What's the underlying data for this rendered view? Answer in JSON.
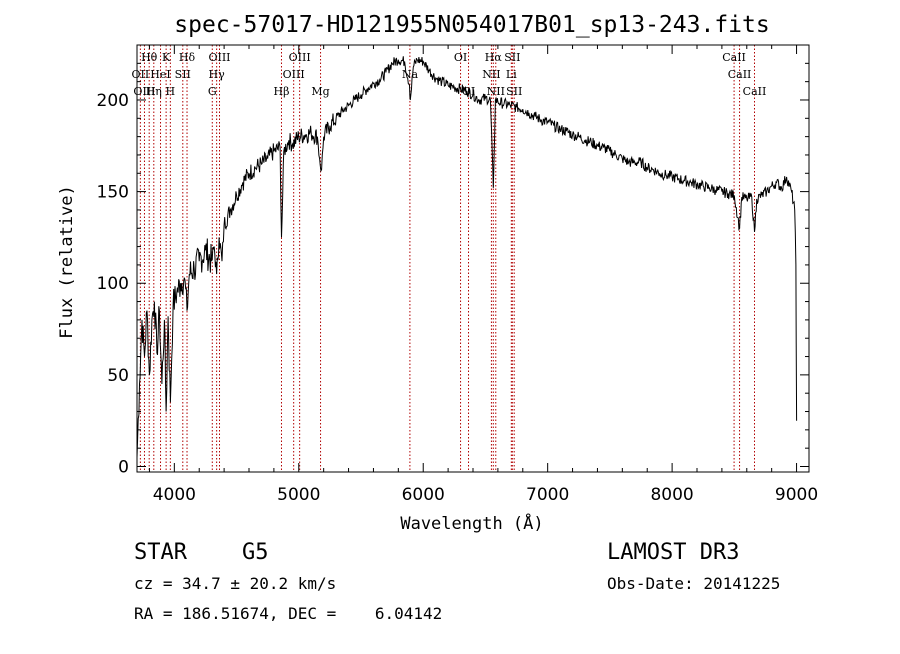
{
  "chart_data": {
    "type": "line",
    "title": "spec-57017-HD121955N054017B01_sp13-243.fits",
    "xlabel": "Wavelength (Å)",
    "ylabel": "Flux (relative)",
    "xlim": [
      3700,
      9100
    ],
    "ylim": [
      -3,
      230
    ],
    "x_ticks": [
      4000,
      5000,
      6000,
      7000,
      8000,
      9000
    ],
    "y_ticks": [
      0,
      50,
      100,
      150,
      200
    ],
    "grid": false,
    "series": [
      {
        "points": [
          [
            3700,
            5
          ],
          [
            3720,
            45
          ],
          [
            3740,
            80
          ],
          [
            3760,
            60
          ],
          [
            3780,
            85
          ],
          [
            3800,
            50
          ],
          [
            3820,
            80
          ],
          [
            3840,
            90
          ],
          [
            3860,
            62
          ],
          [
            3880,
            85
          ],
          [
            3900,
            45
          ],
          [
            3920,
            80
          ],
          [
            3934,
            30
          ],
          [
            3950,
            82
          ],
          [
            3968,
            35
          ],
          [
            3990,
            88
          ],
          [
            4020,
            95
          ],
          [
            4050,
            100
          ],
          [
            4080,
            103
          ],
          [
            4102,
            85
          ],
          [
            4120,
            105
          ],
          [
            4160,
            108
          ],
          [
            4200,
            112
          ],
          [
            4250,
            118
          ],
          [
            4300,
            112
          ],
          [
            4320,
            120
          ],
          [
            4340,
            105
          ],
          [
            4360,
            125
          ],
          [
            4383,
            112
          ],
          [
            4400,
            132
          ],
          [
            4450,
            140
          ],
          [
            4500,
            148
          ],
          [
            4550,
            155
          ],
          [
            4600,
            160
          ],
          [
            4650,
            163
          ],
          [
            4700,
            165
          ],
          [
            4750,
            168
          ],
          [
            4800,
            172
          ],
          [
            4850,
            174
          ],
          [
            4861,
            125
          ],
          [
            4880,
            172
          ],
          [
            4920,
            178
          ],
          [
            4950,
            176
          ],
          [
            5000,
            180
          ],
          [
            5050,
            181
          ],
          [
            5100,
            182
          ],
          [
            5150,
            180
          ],
          [
            5167,
            168
          ],
          [
            5183,
            162
          ],
          [
            5200,
            180
          ],
          [
            5250,
            186
          ],
          [
            5300,
            190
          ],
          [
            5350,
            194
          ],
          [
            5400,
            197
          ],
          [
            5450,
            200
          ],
          [
            5500,
            203
          ],
          [
            5550,
            206
          ],
          [
            5600,
            209
          ],
          [
            5650,
            211
          ],
          [
            5700,
            215
          ],
          [
            5750,
            220
          ],
          [
            5800,
            222
          ],
          [
            5850,
            221
          ],
          [
            5890,
            208
          ],
          [
            5896,
            200
          ],
          [
            5920,
            218
          ],
          [
            5950,
            222
          ],
          [
            6000,
            221
          ],
          [
            6050,
            216
          ],
          [
            6100,
            212
          ],
          [
            6150,
            210
          ],
          [
            6200,
            208
          ],
          [
            6250,
            207
          ],
          [
            6300,
            206
          ],
          [
            6350,
            205
          ],
          [
            6400,
            203
          ],
          [
            6450,
            200
          ],
          [
            6500,
            201
          ],
          [
            6540,
            200
          ],
          [
            6563,
            152
          ],
          [
            6580,
            200
          ],
          [
            6600,
            199
          ],
          [
            6650,
            198
          ],
          [
            6700,
            197
          ],
          [
            6750,
            196
          ],
          [
            6800,
            195
          ],
          [
            6850,
            193
          ],
          [
            6900,
            191
          ],
          [
            6950,
            189
          ],
          [
            7000,
            188
          ],
          [
            7050,
            186
          ],
          [
            7100,
            184
          ],
          [
            7150,
            183
          ],
          [
            7200,
            181
          ],
          [
            7250,
            180
          ],
          [
            7300,
            178
          ],
          [
            7350,
            177
          ],
          [
            7400,
            175
          ],
          [
            7450,
            174
          ],
          [
            7500,
            172
          ],
          [
            7550,
            170
          ],
          [
            7600,
            168
          ],
          [
            7650,
            166
          ],
          [
            7700,
            166
          ],
          [
            7750,
            166
          ],
          [
            7800,
            163
          ],
          [
            7850,
            162
          ],
          [
            7900,
            160
          ],
          [
            7950,
            159
          ],
          [
            8000,
            158
          ],
          [
            8050,
            157
          ],
          [
            8100,
            156
          ],
          [
            8150,
            155
          ],
          [
            8200,
            154
          ],
          [
            8250,
            153
          ],
          [
            8300,
            152
          ],
          [
            8350,
            151
          ],
          [
            8400,
            150
          ],
          [
            8450,
            149
          ],
          [
            8500,
            148
          ],
          [
            8542,
            130
          ],
          [
            8560,
            147
          ],
          [
            8600,
            146
          ],
          [
            8640,
            147
          ],
          [
            8662,
            128
          ],
          [
            8680,
            146
          ],
          [
            8720,
            148
          ],
          [
            8760,
            150
          ],
          [
            8800,
            153
          ],
          [
            8840,
            155
          ],
          [
            8880,
            152
          ],
          [
            8920,
            158
          ],
          [
            8960,
            150
          ],
          [
            8985,
            140
          ],
          [
            8995,
            110
          ],
          [
            9000,
            25
          ]
        ]
      }
    ],
    "line_markers": [
      {
        "label": "Hθ",
        "x": 3798,
        "row": 0
      },
      {
        "label": "OII",
        "x": 3727,
        "row": 1
      },
      {
        "label": "OIII",
        "x": 3760,
        "row": 2
      },
      {
        "label": "Hη",
        "x": 3835,
        "row": 2
      },
      {
        "label": "HeI",
        "x": 3889,
        "row": 1
      },
      {
        "label": "K",
        "x": 3934,
        "row": 0
      },
      {
        "label": "SII",
        "x": 4068,
        "row": 1
      },
      {
        "label": "H",
        "x": 3968,
        "row": 2
      },
      {
        "label": "Hδ",
        "x": 4102,
        "row": 0
      },
      {
        "label": "OIII",
        "x": 4363,
        "row": 0
      },
      {
        "label": "Hγ",
        "x": 4340,
        "row": 1
      },
      {
        "label": "G",
        "x": 4305,
        "row": 2
      },
      {
        "label": "Hβ",
        "x": 4861,
        "row": 2
      },
      {
        "label": "OIII",
        "x": 4959,
        "row": 1
      },
      {
        "label": "OIII",
        "x": 5007,
        "row": 0
      },
      {
        "label": "Mg",
        "x": 5175,
        "row": 2
      },
      {
        "label": "Na",
        "x": 5893,
        "row": 1
      },
      {
        "label": "OI",
        "x": 6300,
        "row": 0
      },
      {
        "label": "OI",
        "x": 6364,
        "row": 2
      },
      {
        "label": "Hα",
        "x": 6563,
        "row": 0
      },
      {
        "label": "NII",
        "x": 6548,
        "row": 1
      },
      {
        "label": "NII",
        "x": 6583,
        "row": 2
      },
      {
        "label": "SII",
        "x": 6716,
        "row": 0
      },
      {
        "label": "Li",
        "x": 6708,
        "row": 1
      },
      {
        "label": "SII",
        "x": 6731,
        "row": 2
      },
      {
        "label": "CaII",
        "x": 8498,
        "row": 0
      },
      {
        "label": "CaII",
        "x": 8542,
        "row": 1
      },
      {
        "label": "CaII",
        "x": 8662,
        "row": 2
      }
    ]
  },
  "info": {
    "object_class": "STAR",
    "subclass": "G5",
    "survey": "LAMOST DR3",
    "redshift": "cz = 34.7 ± 20.2 km/s",
    "obs_date": "Obs-Date: 20141225",
    "coords": "RA = 186.51674, DEC =    6.04142"
  },
  "colors": {
    "spectrum": "#000000",
    "line_marker": "#b00000",
    "axes": "#000000",
    "background": "#ffffff"
  }
}
